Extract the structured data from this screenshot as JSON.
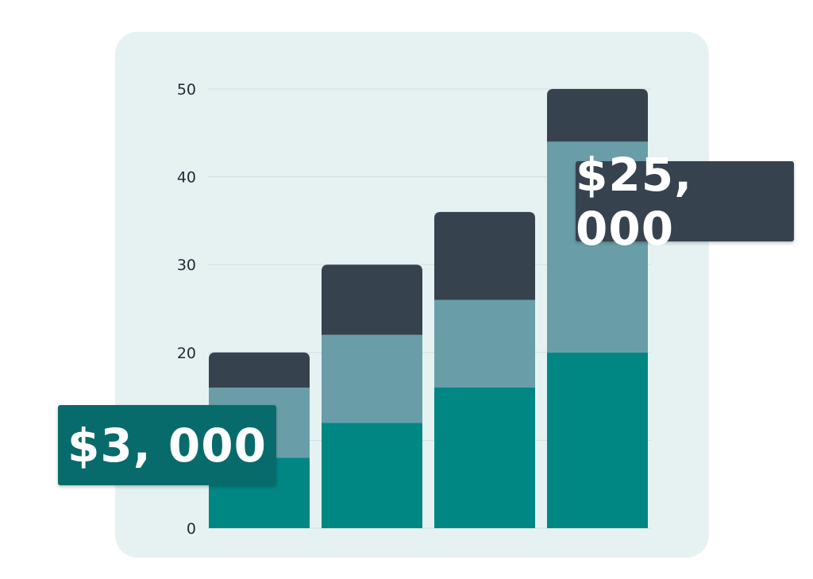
{
  "colors": {
    "panel_bg": "#e6f2f2",
    "grid": "#cfdedf",
    "segment_bottom": "#008784",
    "segment_middle": "#699ea8",
    "segment_top": "#36434f",
    "callout_small_bg": "#086b6b",
    "callout_large_bg": "#36434f"
  },
  "chart_data": {
    "type": "bar",
    "stacked": true,
    "categories": [
      "",
      "",
      "",
      ""
    ],
    "series": [
      {
        "color": "#008784",
        "values": [
          8,
          12,
          16,
          20
        ]
      },
      {
        "color": "#699ea8",
        "values": [
          8,
          10,
          10,
          24
        ]
      },
      {
        "color": "#36434f",
        "values": [
          4,
          8,
          10,
          6
        ]
      }
    ],
    "yticks": [
      "0",
      "10",
      "20",
      "30",
      "40",
      "50"
    ],
    "ylim": [
      0,
      50
    ],
    "grid": true,
    "legend": "none",
    "title": "",
    "xlabel": "",
    "ylabel": ""
  },
  "callouts": {
    "small": "$3, 000",
    "large": "$25, 000"
  }
}
